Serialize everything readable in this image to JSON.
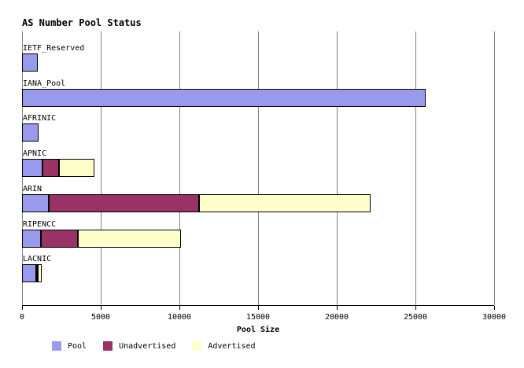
{
  "title": "AS Number Pool Status",
  "chart_data": {
    "type": "bar",
    "orientation": "horizontal",
    "stacked": true,
    "title": "AS Number Pool Status",
    "xlabel": "Pool Size",
    "ylabel": "",
    "xlim": [
      0,
      30000
    ],
    "xticks": [
      0,
      5000,
      10000,
      15000,
      20000,
      25000,
      30000
    ],
    "grid": "vertical-only",
    "legend_position": "bottom-left",
    "categories": [
      "IETF_Reserved",
      "IANA_Pool",
      "AFRINIC",
      "APNIC",
      "ARIN",
      "RIPENCC",
      "LACNIC"
    ],
    "series": [
      {
        "name": "Pool",
        "color": "#9999ee",
        "values": [
          1000,
          25650,
          1050,
          1300,
          1700,
          1200,
          900
        ]
      },
      {
        "name": "Unadvertised",
        "color": "#993366",
        "values": [
          0,
          0,
          0,
          1050,
          9550,
          2350,
          75
        ]
      },
      {
        "name": "Advertised",
        "color": "#ffffcc",
        "values": [
          0,
          0,
          0,
          2250,
          10900,
          6550,
          225
        ]
      }
    ],
    "totals": [
      1000,
      25650,
      1050,
      4600,
      22150,
      10100,
      1200
    ]
  },
  "colors": {
    "background": "#ffffff",
    "grid": "#808080",
    "axis": "#000000",
    "bar_border": "#000000",
    "text": "#000000",
    "pool": "#9999ee",
    "unadvertised": "#993366",
    "advertised": "#ffffcc"
  }
}
